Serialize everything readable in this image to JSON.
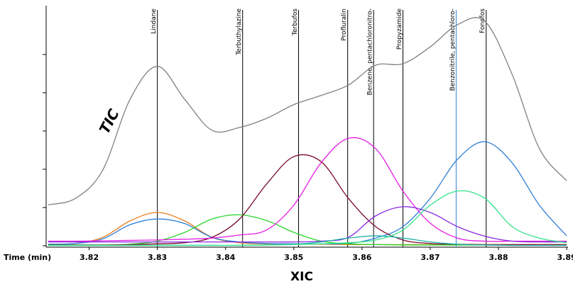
{
  "chart_data": {
    "type": "line",
    "title": "XIC",
    "x_label": "Time (min)",
    "xlim": [
      3.8137,
      3.8902
    ],
    "xticks": [
      3.82,
      3.83,
      3.84,
      3.85,
      3.86,
      3.87,
      3.88,
      3.89
    ],
    "ylim": [
      0,
      6.24
    ],
    "yticks": [
      0,
      1,
      2,
      3,
      4,
      5
    ],
    "x": [
      3.814,
      3.818,
      3.822,
      3.826,
      3.83,
      3.834,
      3.838,
      3.842,
      3.846,
      3.85,
      3.854,
      3.858,
      3.862,
      3.866,
      3.87,
      3.874,
      3.878,
      3.882,
      3.886,
      3.89
    ],
    "series": [
      {
        "name": "TIC",
        "color": "#808080",
        "values": [
          1.07,
          1.24,
          1.98,
          3.83,
          4.69,
          3.83,
          3.02,
          3.09,
          3.33,
          3.69,
          3.93,
          4.2,
          4.72,
          4.76,
          5.2,
          5.78,
          5.87,
          4.48,
          2.54,
          1.7
        ]
      },
      {
        "color": "#e87d1e",
        "values": [
          0.04,
          0.06,
          0.22,
          0.65,
          0.87,
          0.65,
          0.22,
          0.08,
          0.05,
          0.04,
          0.04,
          0.03,
          0.03,
          0.03,
          0.03,
          0.03,
          0.03,
          0.03,
          0.03,
          0.03
        ]
      },
      {
        "color": "#2f7fd8",
        "values": [
          0.04,
          0.06,
          0.18,
          0.55,
          0.7,
          0.58,
          0.22,
          0.1,
          0.06,
          0.05,
          0.05,
          0.06,
          0.2,
          0.5,
          1.24,
          2.26,
          2.72,
          2.17,
          1.06,
          0.26
        ]
      },
      {
        "color": "#29d629",
        "values": [
          0.02,
          0.02,
          0.02,
          0.04,
          0.12,
          0.35,
          0.7,
          0.81,
          0.66,
          0.35,
          0.12,
          0.05,
          0.03,
          0.02,
          0.02,
          0.02,
          0.02,
          0.02,
          0.02,
          0.02
        ]
      },
      {
        "color": "#7a0a2a",
        "values": [
          0.02,
          0.02,
          0.02,
          0.03,
          0.05,
          0.08,
          0.22,
          0.69,
          1.61,
          2.33,
          2.2,
          1.24,
          0.5,
          0.15,
          0.06,
          0.04,
          0.03,
          0.03,
          0.03,
          0.03
        ]
      },
      {
        "color": "#e31ee3",
        "values": [
          0.12,
          0.12,
          0.13,
          0.14,
          0.15,
          0.17,
          0.2,
          0.28,
          0.41,
          1.06,
          2.17,
          2.81,
          2.54,
          1.43,
          0.59,
          0.2,
          0.12,
          0.12,
          0.12,
          0.12
        ]
      },
      {
        "color": "#8a2be2",
        "values": [
          0.1,
          0.1,
          0.1,
          0.1,
          0.1,
          0.1,
          0.1,
          0.1,
          0.1,
          0.1,
          0.12,
          0.22,
          0.78,
          1.02,
          0.87,
          0.5,
          0.25,
          0.12,
          0.1,
          0.1
        ]
      },
      {
        "color": "#20b2aa",
        "values": [
          0.01,
          0.01,
          0.01,
          0.01,
          0.01,
          0.01,
          0.01,
          0.01,
          0.02,
          0.04,
          0.1,
          0.2,
          0.26,
          0.2,
          0.1,
          0.04,
          0.02,
          0.01,
          0.01,
          0.01
        ]
      },
      {
        "color": "#33e38a",
        "values": [
          0.01,
          0.01,
          0.01,
          0.01,
          0.01,
          0.01,
          0.01,
          0.01,
          0.02,
          0.03,
          0.05,
          0.08,
          0.15,
          0.41,
          1.06,
          1.43,
          1.24,
          0.5,
          0.2,
          0.08
        ]
      }
    ],
    "markers": [
      {
        "x": 3.83,
        "label": "Lindane",
        "color": "#000000"
      },
      {
        "x": 3.8425,
        "label": "Terbuthylazine",
        "color": "#000000"
      },
      {
        "x": 3.8507,
        "label": "Terbufos",
        "color": "#000000"
      },
      {
        "x": 3.8579,
        "label": "Profluralin",
        "color": "#000000"
      },
      {
        "x": 3.8617,
        "label": "Benzene, pentachloronitro-",
        "color": "#000000"
      },
      {
        "x": 3.866,
        "label": "Propyzamide",
        "color": "#000000"
      },
      {
        "x": 3.8738,
        "label": "Benzonitrile, pentachloro-",
        "color": "#2f7fd8"
      },
      {
        "x": 3.8782,
        "label": "Fonofos",
        "color": "#000000"
      }
    ]
  }
}
